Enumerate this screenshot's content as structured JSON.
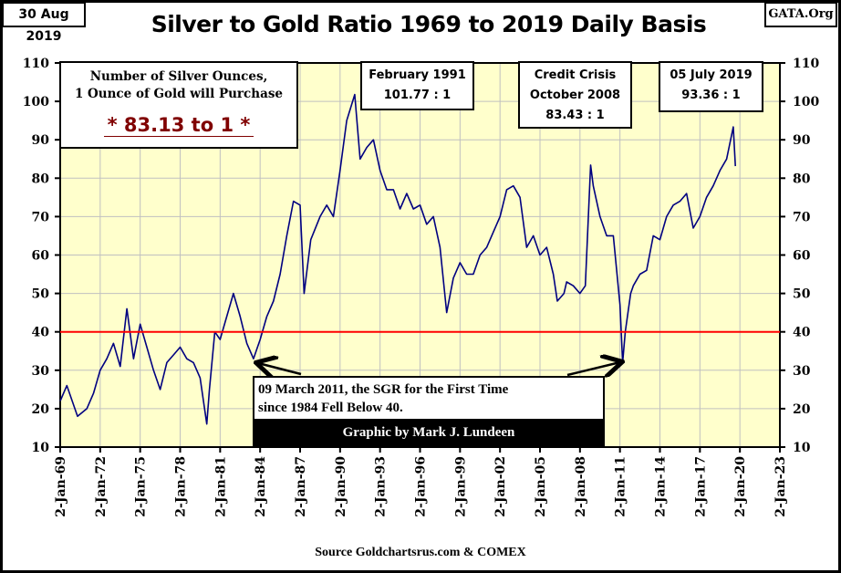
{
  "date_label": "30 Aug 2019",
  "title": "Silver to Gold Ratio 1969 to 2019 Daily Basis",
  "site_label": "GATA.Org",
  "info_box": {
    "line1": "Number of Silver Ounces,",
    "line2": "1 Ounce of Gold will Purchase",
    "value": "* 83.13 to 1 *"
  },
  "annotations": {
    "feb1991": {
      "line1": "February 1991",
      "line2": "101.77 : 1"
    },
    "crisis": {
      "line1": "Credit Crisis",
      "line2": "October 2008",
      "line3": "83.43 : 1"
    },
    "july2019": {
      "line1": "05 July 2019",
      "line2": "93.36 : 1"
    },
    "march2011": {
      "line1": "09 March 2011, the SGR for the First Time",
      "line2": "since 1984 Fell Below 40."
    },
    "credit": "Graphic by Mark J. Lundeen"
  },
  "source": "Source Goldchartsrus.com & COMEX",
  "colors": {
    "plot_bg": "#FFFFCC",
    "line": "#000080",
    "reference_line": "#FF0000",
    "value_text": "#800000"
  },
  "chart_data": {
    "type": "line",
    "title": "Silver to Gold Ratio 1969 to 2019 Daily Basis",
    "xlabel": "",
    "ylabel": "",
    "ylim": [
      10,
      110
    ],
    "xlim": [
      1969,
      2023
    ],
    "y_ticks": [
      "10",
      "20",
      "30",
      "40",
      "50",
      "60",
      "70",
      "80",
      "90",
      "100",
      "110"
    ],
    "x_ticks": [
      "2-Jan-69",
      "2-Jan-72",
      "2-Jan-75",
      "2-Jan-78",
      "2-Jan-81",
      "2-Jan-84",
      "2-Jan-87",
      "2-Jan-90",
      "2-Jan-93",
      "2-Jan-96",
      "2-Jan-99",
      "2-Jan-02",
      "2-Jan-05",
      "2-Jan-08",
      "2-Jan-11",
      "2-Jan-14",
      "2-Jan-17",
      "2-Jan-20",
      "2-Jan-23"
    ],
    "grid": true,
    "reference_line": 40,
    "series": [
      {
        "x": [
          1969.0,
          1969.5,
          1970.3,
          1971.0,
          1971.5,
          1972.0,
          1972.5,
          1973.0,
          1973.5,
          1974.0,
          1974.5,
          1975.0,
          1975.5,
          1976.0,
          1976.5,
          1977.0,
          1977.5,
          1978.0,
          1978.5,
          1979.0,
          1979.5,
          1980.0,
          1980.2,
          1980.6,
          1981.0,
          1981.5,
          1982.0,
          1982.5,
          1983.0,
          1983.5,
          1984.0,
          1984.5,
          1985.0,
          1985.5,
          1986.0,
          1986.5,
          1987.0,
          1987.3,
          1987.8,
          1988.5,
          1989.0,
          1989.5,
          1990.0,
          1990.5,
          1991.1,
          1991.5,
          1992.0,
          1992.5,
          1993.0,
          1993.5,
          1994.0,
          1994.5,
          1995.0,
          1995.5,
          1996.0,
          1996.5,
          1997.0,
          1997.5,
          1998.0,
          1998.5,
          1999.0,
          1999.5,
          2000.0,
          2000.5,
          2001.0,
          2001.5,
          2002.0,
          2002.5,
          2003.0,
          2003.5,
          2004.0,
          2004.5,
          2005.0,
          2005.5,
          2006.0,
          2006.3,
          2006.8,
          2007.0,
          2007.5,
          2008.0,
          2008.4,
          2008.8,
          2009.0,
          2009.5,
          2010.0,
          2010.5,
          2011.0,
          2011.2,
          2011.4,
          2011.8,
          2012.0,
          2012.5,
          2013.0,
          2013.5,
          2014.0,
          2014.5,
          2015.0,
          2015.5,
          2016.0,
          2016.5,
          2017.0,
          2017.5,
          2018.0,
          2018.5,
          2019.0,
          2019.5,
          2019.66
        ],
        "y": [
          22,
          26,
          18,
          20,
          24,
          30,
          33,
          37,
          31,
          46,
          33,
          42,
          36,
          30,
          25,
          32,
          34,
          36,
          33,
          32,
          28,
          16,
          25,
          40,
          38,
          44,
          50,
          44,
          37,
          33,
          38,
          44,
          48,
          55,
          65,
          74,
          73,
          50,
          64,
          70,
          73,
          70,
          82,
          95,
          101.77,
          85,
          88,
          90,
          82,
          77,
          77,
          72,
          76,
          72,
          73,
          68,
          70,
          62,
          45,
          54,
          58,
          55,
          55,
          60,
          62,
          66,
          70,
          77,
          78,
          75,
          62,
          65,
          60,
          62,
          55,
          48,
          50,
          53,
          52,
          50,
          52,
          83.43,
          78,
          70,
          65,
          65,
          47,
          32,
          40,
          50,
          52,
          55,
          56,
          65,
          64,
          70,
          73,
          74,
          76,
          67,
          70,
          75,
          78,
          82,
          85,
          93.36,
          83.13
        ]
      }
    ]
  }
}
